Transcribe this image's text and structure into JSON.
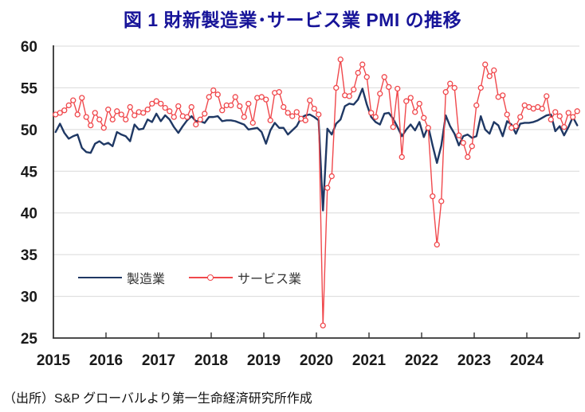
{
  "figure": {
    "title": "図 1  財新製造業･サービス業 PMI の推移",
    "title_color": "#171499",
    "source_note": "（出所）S&P グローバルより第一生命経済研究所作成"
  },
  "chart_data": {
    "type": "line",
    "title": "図 1  財新製造業･サービス業 PMI の推移",
    "x_unit": "month",
    "x_range": [
      "2015-01",
      "2024-12"
    ],
    "x_tick_labels": [
      "2015",
      "2016",
      "2017",
      "2018",
      "2019",
      "2020",
      "2021",
      "2022",
      "2023",
      "2024"
    ],
    "y_ticks": [
      25,
      30,
      35,
      40,
      45,
      50,
      55,
      60
    ],
    "ylim": [
      25,
      60
    ],
    "grid": true,
    "grid_color": "#d9d9d9",
    "axis_color": "#333333",
    "legend_position": "inside-left-lower",
    "series": [
      {
        "name": "製造業",
        "color": "#1f3864",
        "marker": "none",
        "values": [
          49.7,
          50.7,
          49.6,
          48.9,
          49.2,
          49.4,
          47.8,
          47.3,
          47.2,
          48.3,
          48.6,
          48.2,
          48.4,
          48.0,
          49.7,
          49.4,
          49.2,
          48.6,
          50.6,
          50.0,
          50.1,
          51.2,
          50.9,
          51.9,
          51.0,
          51.7,
          51.2,
          50.3,
          49.6,
          50.4,
          51.1,
          51.6,
          51.0,
          51.0,
          50.8,
          51.5,
          51.5,
          51.6,
          51.0,
          51.1,
          51.1,
          51.0,
          50.8,
          50.6,
          50.0,
          50.1,
          50.2,
          49.7,
          48.3,
          49.9,
          50.8,
          50.2,
          50.2,
          49.4,
          49.9,
          50.4,
          51.4,
          51.7,
          51.8,
          51.5,
          51.1,
          40.3,
          50.1,
          49.4,
          50.7,
          51.2,
          52.8,
          53.1,
          53.0,
          53.6,
          54.9,
          53.0,
          51.5,
          50.9,
          50.6,
          51.9,
          52.0,
          51.3,
          50.3,
          49.2,
          50.0,
          50.6,
          49.9,
          50.9,
          49.1,
          50.4,
          48.1,
          46.0,
          48.1,
          51.7,
          50.4,
          49.5,
          48.1,
          49.2,
          49.4,
          49.0,
          49.2,
          51.6,
          50.0,
          49.5,
          50.9,
          50.5,
          49.2,
          51.0,
          50.6,
          49.5,
          50.7,
          50.8,
          50.8,
          50.9,
          51.1,
          51.4,
          51.7,
          51.8,
          49.8,
          50.4,
          49.3,
          50.3,
          51.5,
          50.5
        ]
      },
      {
        "name": "サービス業",
        "color": "#f0484c",
        "marker": "open-circle",
        "values": [
          51.8,
          52.0,
          52.3,
          52.9,
          53.5,
          51.8,
          53.8,
          51.5,
          50.5,
          52.0,
          51.2,
          50.2,
          52.4,
          51.2,
          52.2,
          51.8,
          51.2,
          52.7,
          51.7,
          52.1,
          52.0,
          52.4,
          53.1,
          53.4,
          53.1,
          52.6,
          52.2,
          51.5,
          52.8,
          51.6,
          51.5,
          52.7,
          50.6,
          51.2,
          51.9,
          53.9,
          54.7,
          54.2,
          52.3,
          52.9,
          52.9,
          53.9,
          52.8,
          51.5,
          53.1,
          50.8,
          53.8,
          53.9,
          53.6,
          51.1,
          54.4,
          54.5,
          52.7,
          52.0,
          51.6,
          52.1,
          51.3,
          51.1,
          53.5,
          52.5,
          51.8,
          26.5,
          43.0,
          44.4,
          55.0,
          58.4,
          54.1,
          54.0,
          54.8,
          56.8,
          57.8,
          56.3,
          52.0,
          51.5,
          54.3,
          56.3,
          55.1,
          50.3,
          54.9,
          46.7,
          53.4,
          53.8,
          52.1,
          53.1,
          51.4,
          50.2,
          42.0,
          36.2,
          41.4,
          54.5,
          55.5,
          55.0,
          49.3,
          48.4,
          46.7,
          48.0,
          52.9,
          55.0,
          57.8,
          56.4,
          57.1,
          53.9,
          54.1,
          51.8,
          50.2,
          50.4,
          51.5,
          52.9,
          52.7,
          52.5,
          52.7,
          52.5,
          54.0,
          51.2,
          52.1,
          51.6,
          50.3,
          52.0,
          51.5,
          52.2
        ]
      }
    ]
  }
}
